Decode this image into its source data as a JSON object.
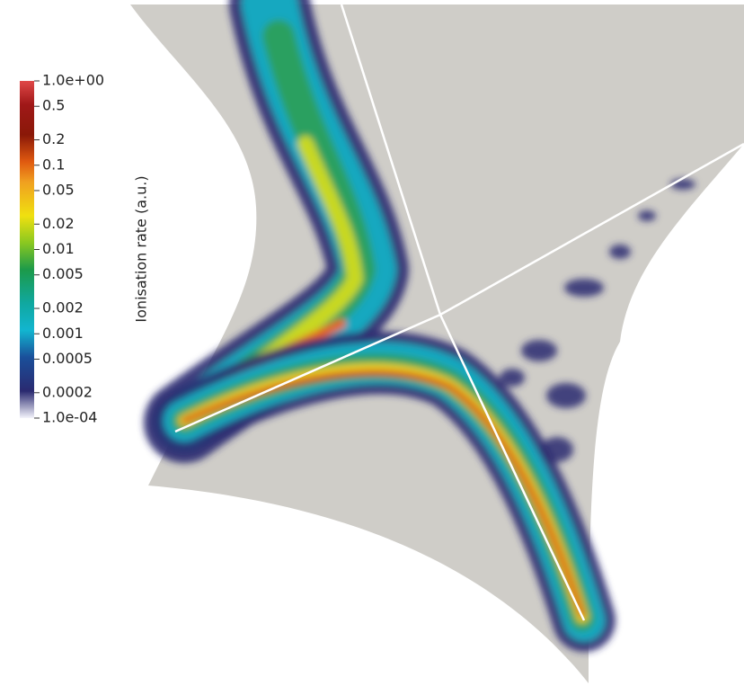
{
  "colorbar": {
    "title": "Ionisation rate (a.u.)",
    "scale": "log",
    "range": [
      0.0001,
      1
    ],
    "ticks": [
      {
        "value": 1,
        "label": "1.0e+00"
      },
      0.5,
      0.2,
      0.1,
      0.05,
      0.02,
      0.01,
      0.005,
      0.002,
      0.001,
      0.0005,
      0.0002,
      {
        "value": 0.0001,
        "label": "1.0e-04"
      }
    ]
  }
}
